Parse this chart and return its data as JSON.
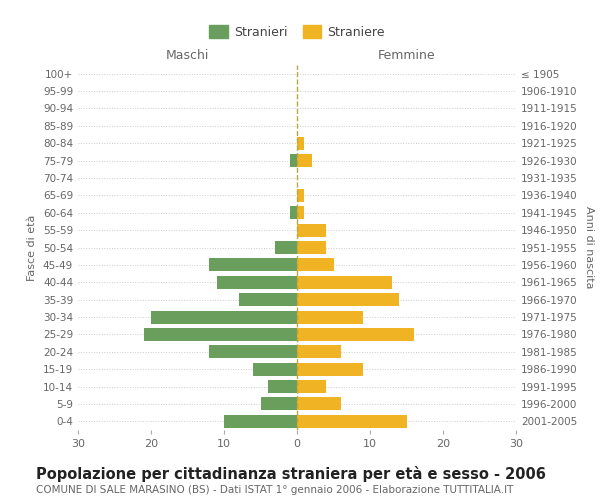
{
  "age_groups": [
    "100+",
    "95-99",
    "90-94",
    "85-89",
    "80-84",
    "75-79",
    "70-74",
    "65-69",
    "60-64",
    "55-59",
    "50-54",
    "45-49",
    "40-44",
    "35-39",
    "30-34",
    "25-29",
    "20-24",
    "15-19",
    "10-14",
    "5-9",
    "0-4"
  ],
  "birth_years": [
    "≤ 1905",
    "1906-1910",
    "1911-1915",
    "1916-1920",
    "1921-1925",
    "1926-1930",
    "1931-1935",
    "1936-1940",
    "1941-1945",
    "1946-1950",
    "1951-1955",
    "1956-1960",
    "1961-1965",
    "1966-1970",
    "1971-1975",
    "1976-1980",
    "1981-1985",
    "1986-1990",
    "1991-1995",
    "1996-2000",
    "2001-2005"
  ],
  "males": [
    0,
    0,
    0,
    0,
    0,
    1,
    0,
    0,
    1,
    0,
    3,
    12,
    11,
    8,
    20,
    21,
    12,
    6,
    4,
    5,
    10
  ],
  "females": [
    0,
    0,
    0,
    0,
    1,
    2,
    0,
    1,
    1,
    4,
    4,
    5,
    13,
    14,
    9,
    16,
    6,
    9,
    4,
    6,
    15
  ],
  "male_color": "#6a9e5c",
  "female_color": "#f0b323",
  "dashed_line_color": "#b8a840",
  "background_color": "#ffffff",
  "grid_color": "#cccccc",
  "title": "Popolazione per cittadinanza straniera per età e sesso - 2006",
  "subtitle": "COMUNE DI SALE MARASINO (BS) - Dati ISTAT 1° gennaio 2006 - Elaborazione TUTTITALIA.IT",
  "xlabel_left": "Maschi",
  "xlabel_right": "Femmine",
  "ylabel_left": "Fasce di età",
  "ylabel_right": "Anni di nascita",
  "legend_males": "Stranieri",
  "legend_females": "Straniere",
  "xlim": 30,
  "title_fontsize": 10.5,
  "subtitle_fontsize": 7.5,
  "bar_height": 0.75
}
